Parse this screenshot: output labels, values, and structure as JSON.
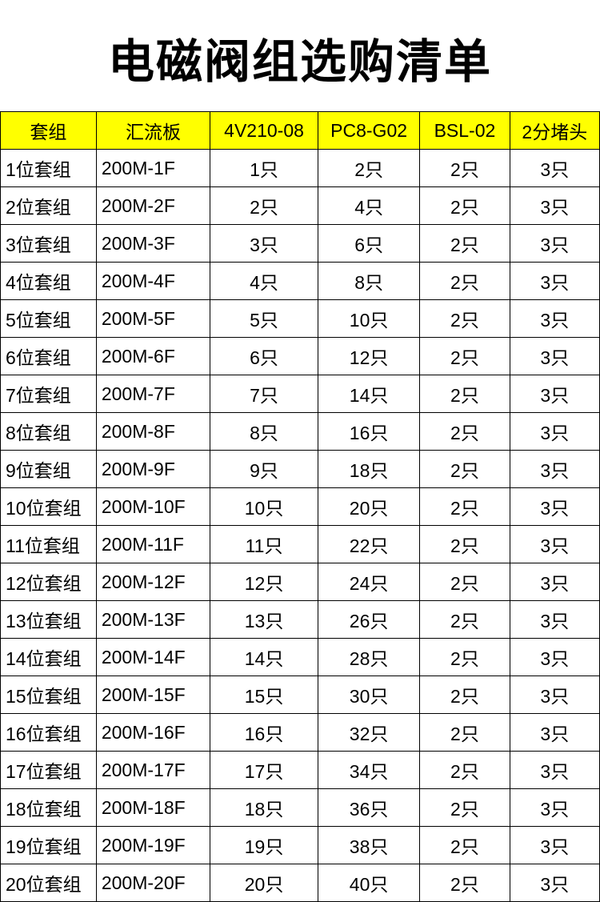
{
  "title": "电磁阀组选购清单",
  "table": {
    "columns": [
      "套组",
      "汇流板",
      "4V210-08",
      "PC8-G02",
      "BSL-02",
      "2分堵头"
    ],
    "column_widths_pct": [
      16,
      19,
      18,
      17,
      15,
      15
    ],
    "header_bg": "#ffff00",
    "header_fontsize": 23,
    "cell_fontsize": 23,
    "border_color": "#000000",
    "rows": [
      [
        "1位套组",
        "200M-1F",
        "1只",
        "2只",
        "2只",
        "3只"
      ],
      [
        "2位套组",
        "200M-2F",
        "2只",
        "4只",
        "2只",
        "3只"
      ],
      [
        "3位套组",
        "200M-3F",
        "3只",
        "6只",
        "2只",
        "3只"
      ],
      [
        "4位套组",
        "200M-4F",
        "4只",
        "8只",
        "2只",
        "3只"
      ],
      [
        "5位套组",
        "200M-5F",
        "5只",
        "10只",
        "2只",
        "3只"
      ],
      [
        "6位套组",
        "200M-6F",
        "6只",
        "12只",
        "2只",
        "3只"
      ],
      [
        "7位套组",
        "200M-7F",
        "7只",
        "14只",
        "2只",
        "3只"
      ],
      [
        "8位套组",
        "200M-8F",
        "8只",
        "16只",
        "2只",
        "3只"
      ],
      [
        "9位套组",
        "200M-9F",
        "9只",
        "18只",
        "2只",
        "3只"
      ],
      [
        "10位套组",
        "200M-10F",
        "10只",
        "20只",
        "2只",
        "3只"
      ],
      [
        "11位套组",
        "200M-11F",
        "11只",
        "22只",
        "2只",
        "3只"
      ],
      [
        "12位套组",
        "200M-12F",
        "12只",
        "24只",
        "2只",
        "3只"
      ],
      [
        "13位套组",
        "200M-13F",
        "13只",
        "26只",
        "2只",
        "3只"
      ],
      [
        "14位套组",
        "200M-14F",
        "14只",
        "28只",
        "2只",
        "3只"
      ],
      [
        "15位套组",
        "200M-15F",
        "15只",
        "30只",
        "2只",
        "3只"
      ],
      [
        "16位套组",
        "200M-16F",
        "16只",
        "32只",
        "2只",
        "3只"
      ],
      [
        "17位套组",
        "200M-17F",
        "17只",
        "34只",
        "2只",
        "3只"
      ],
      [
        "18位套组",
        "200M-18F",
        "18只",
        "36只",
        "2只",
        "3只"
      ],
      [
        "19位套组",
        "200M-19F",
        "19只",
        "38只",
        "2只",
        "3只"
      ],
      [
        "20位套组",
        "200M-20F",
        "20只",
        "40只",
        "2只",
        "3只"
      ]
    ]
  },
  "colors": {
    "background": "#ffffff",
    "title_color": "#000000",
    "header_bg": "#ffff00",
    "border": "#000000",
    "text": "#000000"
  },
  "typography": {
    "title_fontsize": 58,
    "title_weight": 900,
    "cell_fontsize": 23
  }
}
